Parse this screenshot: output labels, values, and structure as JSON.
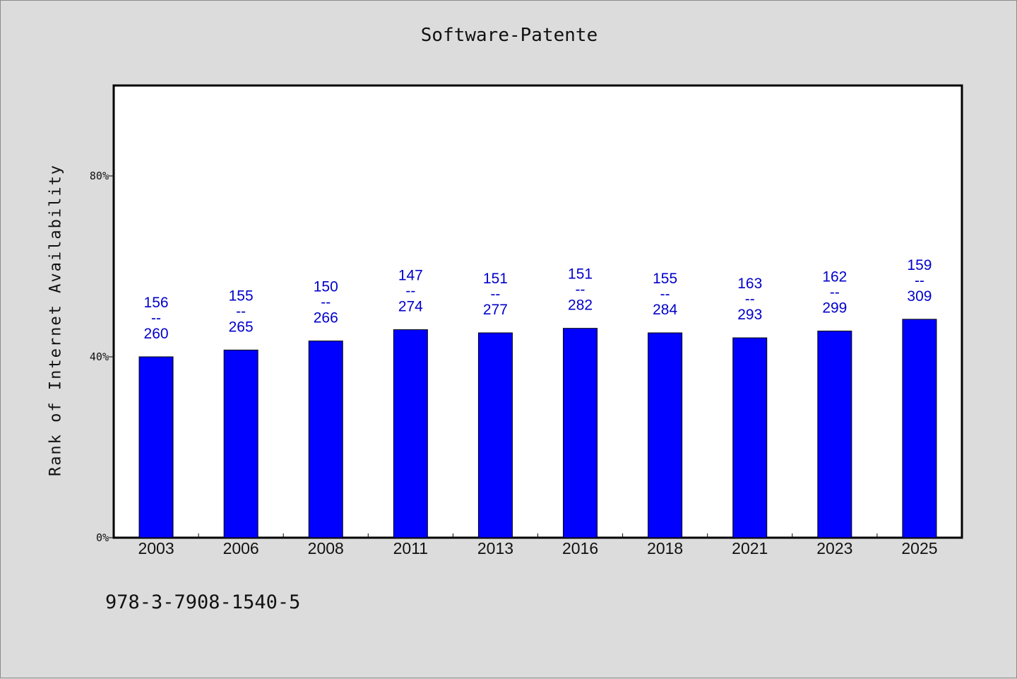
{
  "title": "Software-Patente",
  "footer": "978-3-7908-1540-5",
  "colors": {
    "bar": "#0000ff",
    "label": "#0000cc",
    "background": "#dcdcdc",
    "plot": "#ffffff"
  },
  "chart_data": {
    "type": "bar",
    "title": "Software-Patente",
    "xlabel": "",
    "ylabel": "Rank of Internet Availability",
    "ylim": [
      0,
      100
    ],
    "y_ticks": [
      {
        "value": 0,
        "label": "0%"
      },
      {
        "value": 40,
        "label": "40%"
      },
      {
        "value": 80,
        "label": "80%"
      }
    ],
    "grid": false,
    "categories": [
      "2003",
      "2006",
      "2008",
      "2011",
      "2013",
      "2016",
      "2018",
      "2021",
      "2023",
      "2025"
    ],
    "values": [
      40.0,
      41.5,
      43.5,
      46.0,
      45.3,
      46.3,
      45.3,
      44.2,
      45.7,
      48.3
    ],
    "data_labels": [
      {
        "top": "156",
        "sep": "--",
        "bottom": "260"
      },
      {
        "top": "155",
        "sep": "--",
        "bottom": "265"
      },
      {
        "top": "150",
        "sep": "--",
        "bottom": "266"
      },
      {
        "top": "147",
        "sep": "--",
        "bottom": "274"
      },
      {
        "top": "151",
        "sep": "--",
        "bottom": "277"
      },
      {
        "top": "151",
        "sep": "--",
        "bottom": "282"
      },
      {
        "top": "155",
        "sep": "--",
        "bottom": "284"
      },
      {
        "top": "163",
        "sep": "--",
        "bottom": "293"
      },
      {
        "top": "162",
        "sep": "--",
        "bottom": "299"
      },
      {
        "top": "159",
        "sep": "--",
        "bottom": "309"
      }
    ]
  }
}
